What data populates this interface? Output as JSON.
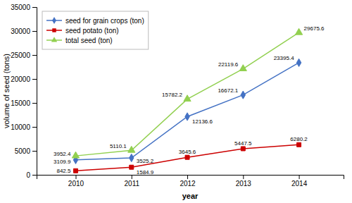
{
  "chart_data": {
    "type": "line",
    "xlabel": "year",
    "ylabel": "volume of seed (tons)",
    "x": [
      2010,
      2011,
      2012,
      2013,
      2014
    ],
    "series": [
      {
        "name": "seed for grain crops (ton)",
        "color": "#4472C4",
        "marker": "diamond",
        "values": [
          3109.9,
          3525.2,
          12136.6,
          16672.1,
          23395.4
        ]
      },
      {
        "name": "seed potato (ton)",
        "color": "#CC0000",
        "marker": "square",
        "values": [
          842.5,
          1584.9,
          3645.6,
          5447.5,
          6280.2
        ]
      },
      {
        "name": "total seed (ton)",
        "color": "#92D050",
        "marker": "triangle",
        "values": [
          3952.4,
          5110.1,
          15782.2,
          22119.6,
          29675.6
        ]
      }
    ],
    "xlim": [
      2009.3,
      2014.8
    ],
    "xticks": [
      2010,
      2011,
      2012,
      2013,
      2014
    ],
    "ylim": [
      0,
      35000
    ],
    "yticks": [
      0,
      5000,
      10000,
      15000,
      20000,
      25000,
      30000,
      35000
    ],
    "grid": false,
    "legend": "upper left",
    "data_labels": true
  }
}
